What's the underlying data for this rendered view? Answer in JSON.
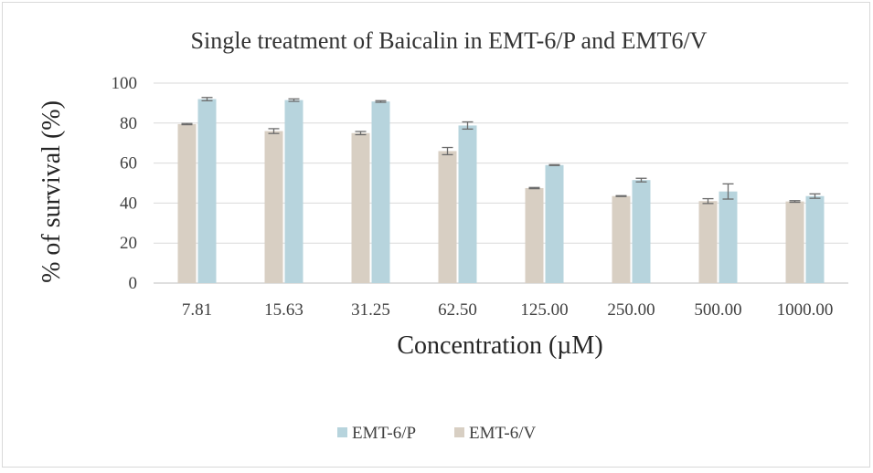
{
  "chart_data": {
    "type": "bar",
    "title": "Single treatment of Baicalin in EMT-6/P and EMT6/V",
    "xlabel": "Concentration (µM)",
    "ylabel": "% of survival (%)",
    "categories": [
      "7.81",
      "15.63",
      "31.25",
      "62.50",
      "125.00",
      "250.00",
      "500.00",
      "1000.00"
    ],
    "ylim": [
      0,
      100
    ],
    "yticks": [
      0,
      20,
      40,
      60,
      80,
      100
    ],
    "grid": true,
    "legend_position": "bottom",
    "series": [
      {
        "name": "EMT-6/V",
        "color": "#d8cfc3",
        "values": [
          79.5,
          76,
          75,
          66,
          47.5,
          43.5,
          41,
          40.8
        ],
        "errors": [
          0.3,
          1.2,
          0.8,
          1.8,
          0.3,
          0.2,
          1.2,
          0.4
        ]
      },
      {
        "name": "EMT-6/P",
        "color": "#b7d4dd",
        "values": [
          92,
          91.5,
          90.8,
          78.8,
          59,
          51.5,
          45.8,
          43.5
        ],
        "errors": [
          0.8,
          0.6,
          0.4,
          1.8,
          0.2,
          0.9,
          3.8,
          1.1
        ]
      }
    ],
    "legend_order": [
      "EMT-6/P",
      "EMT-6/V"
    ]
  }
}
